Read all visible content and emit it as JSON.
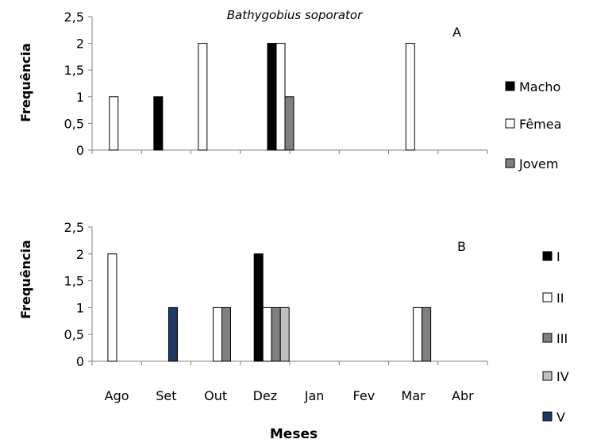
{
  "chart_data": [
    {
      "type": "bar",
      "title": "Bathygobius soporator",
      "panel_label": "A",
      "ylabel": "Frequência",
      "ylim": [
        0,
        2.5
      ],
      "yticks": [
        "0",
        "0,5",
        "1",
        "1,5",
        "2",
        "2,5"
      ],
      "categories": [
        "Ago",
        "Set",
        "Out",
        "Dez",
        "Jan",
        "Fev",
        "Mar",
        "Abr"
      ],
      "legend_position": "right",
      "series": [
        {
          "name": "Macho",
          "color": "#000000",
          "values": [
            0,
            1,
            0,
            2,
            0,
            0,
            0,
            0
          ]
        },
        {
          "name": "Fêmea",
          "color": "#ffffff",
          "values": [
            1,
            0,
            2,
            2,
            0,
            0,
            2,
            0
          ]
        },
        {
          "name": "Jovem",
          "color": "#808080",
          "values": [
            0,
            0,
            0,
            1,
            0,
            0,
            0,
            0
          ]
        }
      ]
    },
    {
      "type": "bar",
      "panel_label": "B",
      "ylabel": "Frequência",
      "xlabel": "Meses",
      "ylim": [
        0,
        2.5
      ],
      "yticks": [
        "0",
        "0,5",
        "1",
        "1,5",
        "2",
        "2,5"
      ],
      "categories": [
        "Ago",
        "Set",
        "Out",
        "Dez",
        "Jan",
        "Fev",
        "Mar",
        "Abr"
      ],
      "legend_position": "right",
      "series": [
        {
          "name": "I",
          "color": "#000000",
          "values": [
            0,
            0,
            0,
            2,
            0,
            0,
            0,
            0
          ]
        },
        {
          "name": "II",
          "color": "#ffffff",
          "values": [
            2,
            0,
            1,
            1,
            0,
            0,
            1,
            0
          ]
        },
        {
          "name": "III",
          "color": "#808080",
          "values": [
            0,
            0,
            1,
            1,
            0,
            0,
            1,
            0
          ]
        },
        {
          "name": "IV",
          "color": "#c0c0c0",
          "values": [
            0,
            0,
            0,
            1,
            0,
            0,
            0,
            0
          ]
        },
        {
          "name": "V",
          "color": "#1f3864",
          "values": [
            0,
            1,
            0,
            0,
            0,
            0,
            0,
            0
          ]
        }
      ]
    }
  ]
}
